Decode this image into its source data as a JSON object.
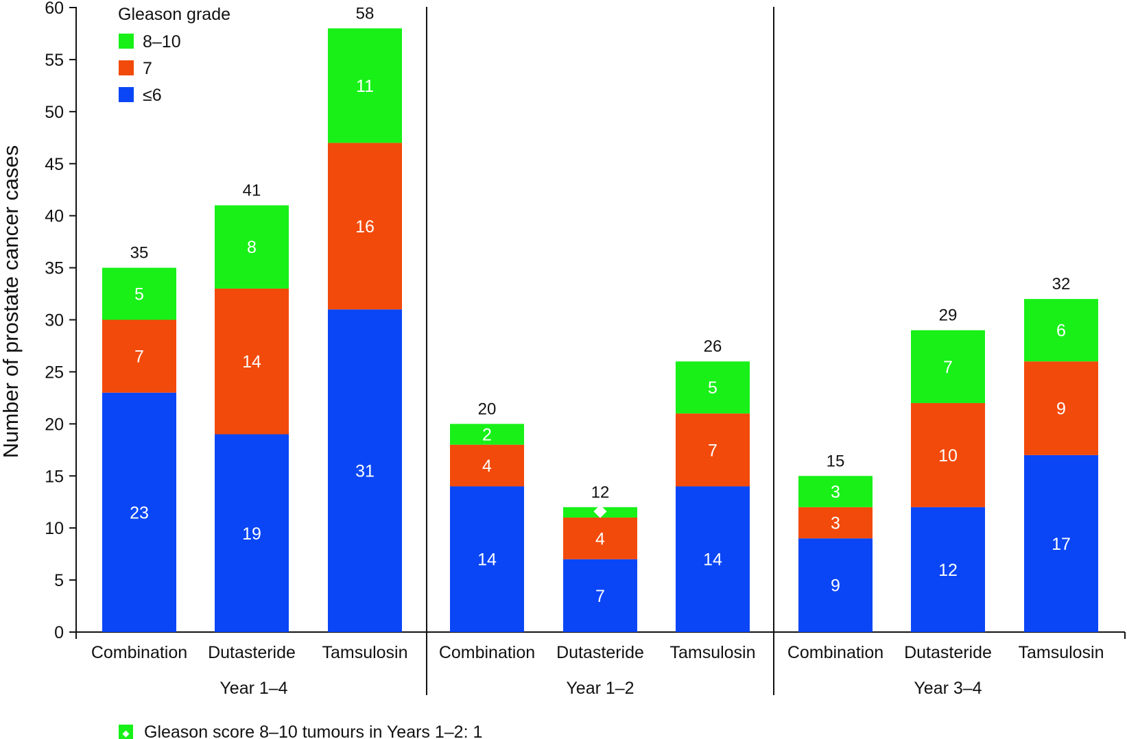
{
  "chart_data": {
    "type": "bar",
    "stacked": true,
    "ylabel": "Number of prostate cancer cases",
    "ylim": [
      0,
      60
    ],
    "yticks": [
      0,
      5,
      10,
      15,
      20,
      25,
      30,
      35,
      40,
      45,
      50,
      55,
      60
    ],
    "groups": [
      {
        "label": "Year 1–4",
        "categories": [
          "Combination",
          "Dutasteride",
          "Tamsulosin"
        ]
      },
      {
        "label": "Year 1–2",
        "categories": [
          "Combination",
          "Dutasteride",
          "Tamsulosin"
        ]
      },
      {
        "label": "Year 3–4",
        "categories": [
          "Combination",
          "Dutasteride",
          "Tamsulosin"
        ]
      }
    ],
    "series": [
      {
        "name": "≤6",
        "color": "#0a46f5",
        "values": [
          23,
          19,
          31,
          14,
          7,
          14,
          9,
          12,
          17
        ],
        "labels": [
          "23",
          "19",
          "31",
          "14",
          "7",
          "14",
          "9",
          "12",
          "17"
        ]
      },
      {
        "name": "7",
        "color": "#f24a0a",
        "values": [
          7,
          14,
          16,
          4,
          4,
          7,
          3,
          10,
          9
        ],
        "labels": [
          "7",
          "14",
          "16",
          "4",
          "4",
          "7",
          "3",
          "10",
          "9"
        ]
      },
      {
        "name": "8–10",
        "color": "#18f018",
        "values": [
          5,
          8,
          11,
          2,
          1,
          5,
          3,
          7,
          6
        ],
        "labels": [
          "5",
          "8",
          "11",
          "2",
          "◆",
          "5",
          "3",
          "7",
          "6"
        ]
      }
    ],
    "totals": [
      "35",
      "41",
      "58",
      "20",
      "12",
      "26",
      "15",
      "29",
      "32"
    ],
    "legend": {
      "title": "Gleason grade",
      "placement": "top-left",
      "order": [
        "8–10",
        "7",
        "≤6"
      ]
    },
    "footnote": {
      "marker": "◆",
      "text": "Gleason score 8–10 tumours in Years 1–2: 1"
    },
    "grid": false
  }
}
